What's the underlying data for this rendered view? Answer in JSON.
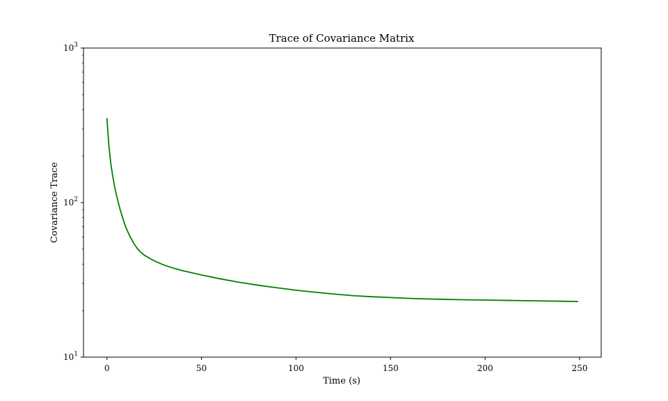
{
  "chart_data": {
    "type": "line",
    "title": "Trace of Covariance Matrix",
    "xlabel": "Time (s)",
    "ylabel": "Covariance Trace",
    "xlim": [
      -12.4,
      261.4
    ],
    "ylim": [
      10,
      1000
    ],
    "yscale": "log",
    "grid": false,
    "x_ticks": [
      {
        "value": 0,
        "label": "0"
      },
      {
        "value": 50,
        "label": "50"
      },
      {
        "value": 100,
        "label": "100"
      },
      {
        "value": 150,
        "label": "150"
      },
      {
        "value": 200,
        "label": "200"
      },
      {
        "value": 250,
        "label": "250"
      }
    ],
    "y_ticks": [
      {
        "value": 10,
        "base": "10",
        "exp": "1"
      },
      {
        "value": 100,
        "base": "10",
        "exp": "2"
      },
      {
        "value": 1000,
        "base": "10",
        "exp": "3"
      }
    ],
    "series": [
      {
        "color": "#008000",
        "x": [
          0,
          1,
          2,
          3,
          4,
          5,
          6,
          7,
          8,
          9,
          10,
          12,
          14,
          16,
          18,
          20,
          22,
          25,
          30,
          35,
          40,
          50,
          60,
          70,
          80,
          90,
          100,
          110,
          120,
          130,
          140,
          150,
          160,
          175,
          190,
          200,
          210,
          220,
          230,
          240,
          249
        ],
        "y": [
          350,
          235,
          180,
          150,
          128,
          112,
          100,
          90,
          82,
          75,
          69,
          61,
          55,
          50.5,
          47.5,
          45.5,
          44,
          42,
          39.5,
          37.7,
          36.3,
          34,
          32.1,
          30.5,
          29.2,
          28.1,
          27.1,
          26.3,
          25.6,
          25.0,
          24.6,
          24.3,
          24.0,
          23.7,
          23.5,
          23.4,
          23.3,
          23.2,
          23.1,
          23.0,
          22.9
        ]
      }
    ]
  }
}
